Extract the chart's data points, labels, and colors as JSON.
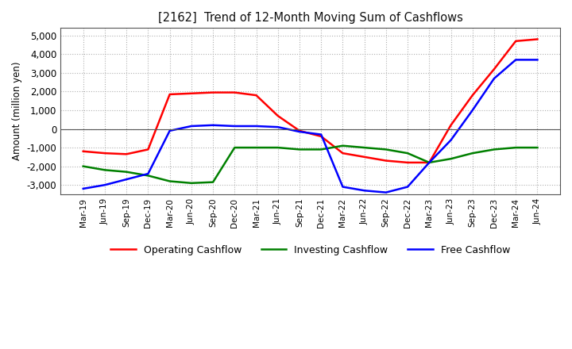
{
  "title": "[2162]  Trend of 12-Month Moving Sum of Cashflows",
  "ylabel": "Amount (million yen)",
  "ylim": [
    -3500,
    5400
  ],
  "yticks": [
    -3000,
    -2000,
    -1000,
    0,
    1000,
    2000,
    3000,
    4000,
    5000
  ],
  "x_labels": [
    "Mar-19",
    "Jun-19",
    "Sep-19",
    "Dec-19",
    "Mar-20",
    "Jun-20",
    "Sep-20",
    "Dec-20",
    "Mar-21",
    "Jun-21",
    "Sep-21",
    "Dec-21",
    "Mar-22",
    "Jun-22",
    "Sep-22",
    "Dec-22",
    "Mar-23",
    "Jun-23",
    "Sep-23",
    "Dec-23",
    "Mar-24",
    "Jun-24"
  ],
  "operating_cashflow": [
    -1200,
    -1300,
    -1350,
    -1100,
    1850,
    1900,
    1950,
    1950,
    1800,
    700,
    -100,
    -400,
    -1300,
    -1500,
    -1700,
    -1800,
    -1800,
    200,
    1800,
    3200,
    4700,
    4800
  ],
  "investing_cashflow": [
    -2000,
    -2200,
    -2300,
    -2500,
    -2800,
    -2900,
    -2850,
    -1000,
    -1000,
    -1000,
    -1100,
    -1100,
    -900,
    -1000,
    -1100,
    -1300,
    -1800,
    -1600,
    -1300,
    -1100,
    -1000,
    -1000
  ],
  "free_cashflow": [
    -3200,
    -3000,
    -2700,
    -2400,
    -100,
    150,
    200,
    150,
    150,
    100,
    -150,
    -300,
    -3100,
    -3300,
    -3400,
    -3100,
    -1800,
    -600,
    1000,
    2700,
    3700,
    3700
  ],
  "line_colors": {
    "operating": "#ff0000",
    "investing": "#008000",
    "free": "#0000ff"
  },
  "legend_labels": [
    "Operating Cashflow",
    "Investing Cashflow",
    "Free Cashflow"
  ],
  "background_color": "#ffffff",
  "grid_color": "#b0b0b0"
}
